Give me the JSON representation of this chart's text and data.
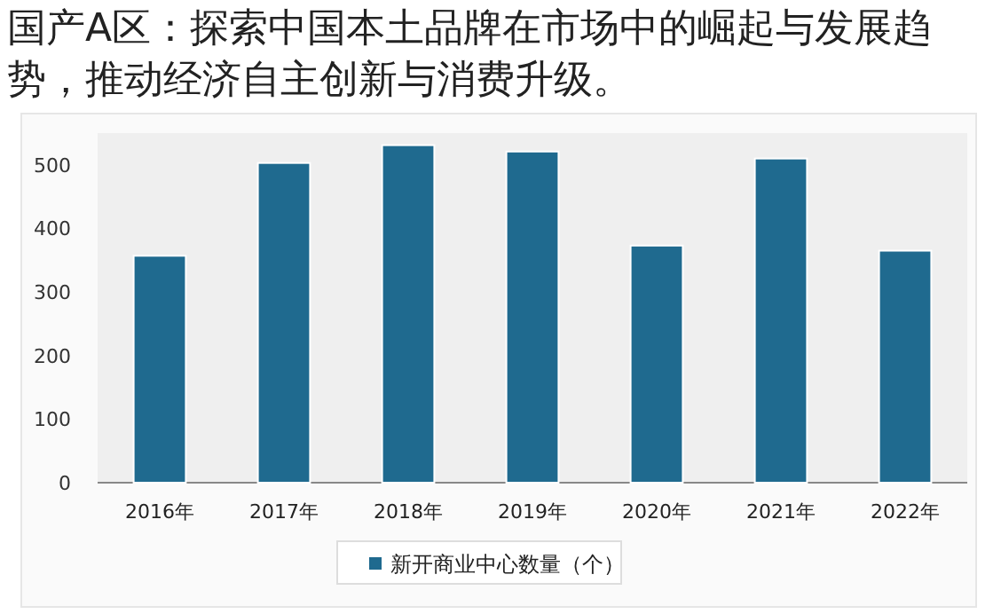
{
  "chart_data": {
    "type": "bar",
    "title": "国产A区：探索中国本土品牌在市场中的崛起与发展趋势，推动经济自主创新与消费升级。",
    "categories": [
      "2016年",
      "2017年",
      "2018年",
      "2019年",
      "2020年",
      "2021年",
      "2022年"
    ],
    "series": [
      {
        "name": "新开商业中心数量（个）",
        "color": "#1f6a8f",
        "values": [
          357,
          503,
          531,
          521,
          373,
          510,
          365
        ]
      }
    ],
    "ylim": [
      0,
      550
    ],
    "yticks": [
      0,
      100,
      200,
      300,
      400,
      500
    ],
    "grid": false,
    "legend": "bottom"
  }
}
